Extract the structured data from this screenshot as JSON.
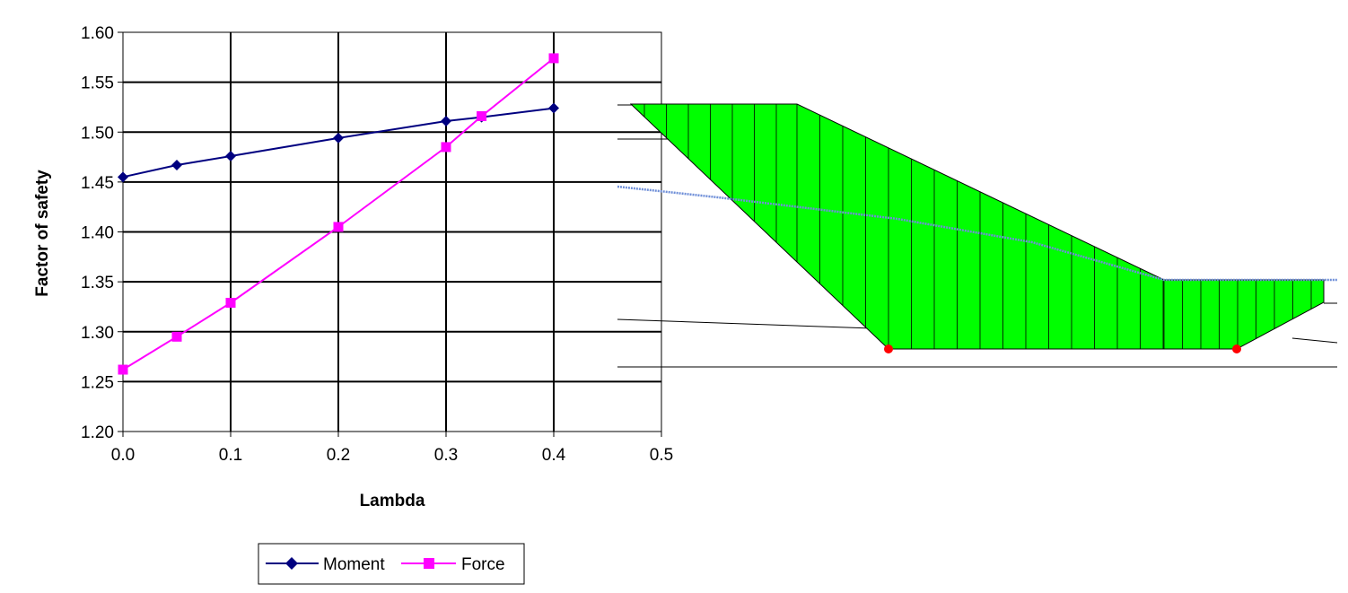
{
  "chart_data": {
    "type": "line",
    "xlabel": "Lambda",
    "ylabel": "Factor of safety",
    "xlim": [
      0,
      0.5
    ],
    "ylim": [
      1.2,
      1.6
    ],
    "x_ticks": [
      "0.0",
      "0.1",
      "0.2",
      "0.3",
      "0.4",
      "0.5"
    ],
    "y_ticks": [
      "1.20",
      "1.25",
      "1.30",
      "1.35",
      "1.40",
      "1.45",
      "1.50",
      "1.55",
      "1.60"
    ],
    "grid": true,
    "legend_position": "bottom",
    "series": [
      {
        "name": "Moment",
        "color": "#000080",
        "marker": "diamond",
        "points": [
          {
            "x": 0.0,
            "y": 1.455
          },
          {
            "x": 0.05,
            "y": 1.467
          },
          {
            "x": 0.1,
            "y": 1.476
          },
          {
            "x": 0.2,
            "y": 1.494
          },
          {
            "x": 0.3,
            "y": 1.511
          },
          {
            "x": 0.333,
            "y": 1.515
          },
          {
            "x": 0.4,
            "y": 1.524
          }
        ]
      },
      {
        "name": "Force",
        "color": "#ff00ff",
        "marker": "square",
        "points": [
          {
            "x": 0.0,
            "y": 1.262
          },
          {
            "x": 0.05,
            "y": 1.295
          },
          {
            "x": 0.1,
            "y": 1.329
          },
          {
            "x": 0.2,
            "y": 1.405
          },
          {
            "x": 0.3,
            "y": 1.485
          },
          {
            "x": 0.333,
            "y": 1.516
          },
          {
            "x": 0.4,
            "y": 1.574
          }
        ]
      }
    ]
  },
  "diagram": {
    "slice_fill": "#00ff00",
    "slip_end_color": "#ff0000",
    "water_table_color": "#6f8fd8"
  }
}
